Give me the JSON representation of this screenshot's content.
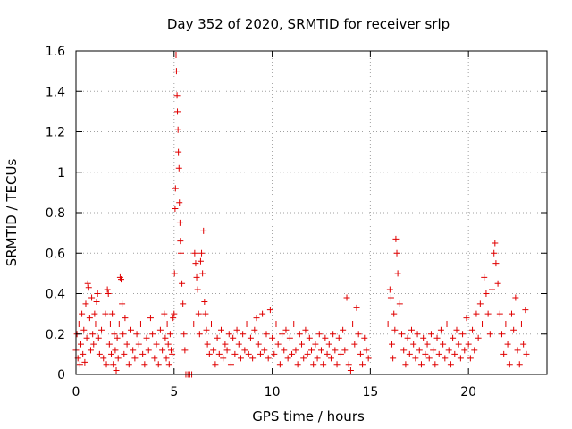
{
  "chart_data": {
    "type": "scatter",
    "title": "Day 352 of 2020, SRMTID for receiver srlp",
    "xlabel": "GPS time / hours",
    "ylabel": "SRMTID / TECUs",
    "xlim": [
      0,
      24
    ],
    "ylim": [
      0,
      1.6
    ],
    "x_ticks": [
      0,
      5,
      10,
      15,
      20
    ],
    "y_ticks": [
      0,
      0.2,
      0.4,
      0.6,
      0.8,
      1,
      1.2,
      1.4,
      1.6
    ],
    "x_tick_labels": [
      "0",
      "5",
      "10",
      "15",
      "20"
    ],
    "y_tick_labels": [
      "0",
      "0.2",
      "0.4",
      "0.6",
      "0.8",
      "1",
      "1.2",
      "1.4",
      "1.6"
    ],
    "grid": true,
    "marker": "+",
    "color": "#e00000",
    "series": [
      {
        "name": "srlp",
        "points": [
          [
            0.0,
            0.12
          ],
          [
            0.05,
            0.2
          ],
          [
            0.1,
            0.08
          ],
          [
            0.15,
            0.25
          ],
          [
            0.2,
            0.05
          ],
          [
            0.25,
            0.15
          ],
          [
            0.3,
            0.3
          ],
          [
            0.35,
            0.1
          ],
          [
            0.4,
            0.22
          ],
          [
            0.45,
            0.06
          ],
          [
            0.5,
            0.35
          ],
          [
            0.55,
            0.18
          ],
          [
            0.6,
            0.45
          ],
          [
            0.65,
            0.43
          ],
          [
            0.7,
            0.28
          ],
          [
            0.75,
            0.12
          ],
          [
            0.8,
            0.38
          ],
          [
            0.85,
            0.2
          ],
          [
            0.9,
            0.15
          ],
          [
            0.95,
            0.3
          ],
          [
            1.0,
            0.25
          ],
          [
            1.05,
            0.36
          ],
          [
            1.1,
            0.4
          ],
          [
            1.15,
            0.18
          ],
          [
            1.2,
            0.1
          ],
          [
            1.3,
            0.22
          ],
          [
            1.4,
            0.08
          ],
          [
            1.5,
            0.3
          ],
          [
            1.55,
            0.05
          ],
          [
            1.6,
            0.42
          ],
          [
            1.65,
            0.4
          ],
          [
            1.7,
            0.15
          ],
          [
            1.75,
            0.25
          ],
          [
            1.8,
            0.1
          ],
          [
            1.85,
            0.3
          ],
          [
            1.9,
            0.05
          ],
          [
            1.95,
            0.2
          ],
          [
            2.0,
            0.12
          ],
          [
            2.05,
            0.02
          ],
          [
            2.1,
            0.18
          ],
          [
            2.15,
            0.08
          ],
          [
            2.2,
            0.25
          ],
          [
            2.25,
            0.48
          ],
          [
            2.3,
            0.47
          ],
          [
            2.35,
            0.35
          ],
          [
            2.4,
            0.2
          ],
          [
            2.45,
            0.1
          ],
          [
            2.5,
            0.28
          ],
          [
            2.6,
            0.15
          ],
          [
            2.7,
            0.05
          ],
          [
            2.8,
            0.22
          ],
          [
            2.9,
            0.12
          ],
          [
            3.0,
            0.08
          ],
          [
            3.1,
            0.2
          ],
          [
            3.2,
            0.15
          ],
          [
            3.3,
            0.25
          ],
          [
            3.4,
            0.1
          ],
          [
            3.5,
            0.05
          ],
          [
            3.6,
            0.18
          ],
          [
            3.7,
            0.12
          ],
          [
            3.8,
            0.28
          ],
          [
            3.9,
            0.2
          ],
          [
            4.0,
            0.08
          ],
          [
            4.1,
            0.15
          ],
          [
            4.2,
            0.05
          ],
          [
            4.3,
            0.22
          ],
          [
            4.4,
            0.12
          ],
          [
            4.5,
            0.3
          ],
          [
            4.55,
            0.18
          ],
          [
            4.6,
            0.08
          ],
          [
            4.65,
            0.25
          ],
          [
            4.7,
            0.15
          ],
          [
            4.75,
            0.05
          ],
          [
            4.8,
            0.2
          ],
          [
            4.85,
            0.12
          ],
          [
            4.9,
            0.1
          ],
          [
            4.95,
            0.28
          ],
          [
            5.0,
            0.3
          ],
          [
            5.02,
            0.5
          ],
          [
            5.05,
            0.82
          ],
          [
            5.07,
            0.92
          ],
          [
            5.1,
            1.58
          ],
          [
            5.12,
            1.5
          ],
          [
            5.15,
            1.38
          ],
          [
            5.17,
            1.3
          ],
          [
            5.2,
            1.21
          ],
          [
            5.22,
            1.1
          ],
          [
            5.25,
            1.02
          ],
          [
            5.27,
            0.85
          ],
          [
            5.3,
            0.75
          ],
          [
            5.32,
            0.66
          ],
          [
            5.35,
            0.6
          ],
          [
            5.4,
            0.45
          ],
          [
            5.45,
            0.35
          ],
          [
            5.5,
            0.2
          ],
          [
            5.55,
            0.12
          ],
          [
            5.6,
            0.0
          ],
          [
            5.7,
            0.0
          ],
          [
            5.8,
            0.0
          ],
          [
            5.9,
            0.0
          ],
          [
            6.0,
            0.25
          ],
          [
            6.05,
            0.6
          ],
          [
            6.1,
            0.55
          ],
          [
            6.15,
            0.48
          ],
          [
            6.2,
            0.42
          ],
          [
            6.25,
            0.3
          ],
          [
            6.3,
            0.2
          ],
          [
            6.35,
            0.56
          ],
          [
            6.4,
            0.6
          ],
          [
            6.45,
            0.5
          ],
          [
            6.5,
            0.71
          ],
          [
            6.55,
            0.36
          ],
          [
            6.6,
            0.3
          ],
          [
            6.65,
            0.22
          ],
          [
            6.7,
            0.15
          ],
          [
            6.8,
            0.1
          ],
          [
            6.9,
            0.25
          ],
          [
            7.0,
            0.12
          ],
          [
            7.1,
            0.05
          ],
          [
            7.2,
            0.18
          ],
          [
            7.3,
            0.1
          ],
          [
            7.4,
            0.22
          ],
          [
            7.5,
            0.08
          ],
          [
            7.6,
            0.15
          ],
          [
            7.7,
            0.12
          ],
          [
            7.8,
            0.2
          ],
          [
            7.9,
            0.05
          ],
          [
            8.0,
            0.18
          ],
          [
            8.1,
            0.1
          ],
          [
            8.2,
            0.22
          ],
          [
            8.3,
            0.15
          ],
          [
            8.4,
            0.08
          ],
          [
            8.5,
            0.2
          ],
          [
            8.6,
            0.12
          ],
          [
            8.7,
            0.25
          ],
          [
            8.8,
            0.1
          ],
          [
            8.9,
            0.18
          ],
          [
            9.0,
            0.08
          ],
          [
            9.1,
            0.22
          ],
          [
            9.2,
            0.28
          ],
          [
            9.3,
            0.15
          ],
          [
            9.4,
            0.1
          ],
          [
            9.5,
            0.3
          ],
          [
            9.6,
            0.12
          ],
          [
            9.7,
            0.2
          ],
          [
            9.8,
            0.08
          ],
          [
            9.9,
            0.32
          ],
          [
            10.0,
            0.18
          ],
          [
            10.1,
            0.1
          ],
          [
            10.2,
            0.25
          ],
          [
            10.3,
            0.15
          ],
          [
            10.4,
            0.05
          ],
          [
            10.5,
            0.2
          ],
          [
            10.6,
            0.12
          ],
          [
            10.7,
            0.22
          ],
          [
            10.8,
            0.08
          ],
          [
            10.9,
            0.18
          ],
          [
            11.0,
            0.1
          ],
          [
            11.1,
            0.25
          ],
          [
            11.2,
            0.12
          ],
          [
            11.3,
            0.05
          ],
          [
            11.4,
            0.2
          ],
          [
            11.5,
            0.15
          ],
          [
            11.6,
            0.08
          ],
          [
            11.7,
            0.22
          ],
          [
            11.8,
            0.1
          ],
          [
            11.9,
            0.18
          ],
          [
            12.0,
            0.12
          ],
          [
            12.1,
            0.05
          ],
          [
            12.2,
            0.15
          ],
          [
            12.3,
            0.08
          ],
          [
            12.4,
            0.2
          ],
          [
            12.5,
            0.12
          ],
          [
            12.6,
            0.05
          ],
          [
            12.7,
            0.18
          ],
          [
            12.8,
            0.1
          ],
          [
            12.9,
            0.15
          ],
          [
            13.0,
            0.08
          ],
          [
            13.1,
            0.2
          ],
          [
            13.2,
            0.12
          ],
          [
            13.3,
            0.05
          ],
          [
            13.4,
            0.18
          ],
          [
            13.5,
            0.1
          ],
          [
            13.6,
            0.22
          ],
          [
            13.7,
            0.12
          ],
          [
            13.8,
            0.38
          ],
          [
            13.9,
            0.05
          ],
          [
            14.0,
            0.02
          ],
          [
            14.1,
            0.25
          ],
          [
            14.2,
            0.15
          ],
          [
            14.3,
            0.33
          ],
          [
            14.4,
            0.2
          ],
          [
            14.5,
            0.1
          ],
          [
            14.6,
            0.05
          ],
          [
            14.7,
            0.18
          ],
          [
            14.8,
            0.12
          ],
          [
            14.9,
            0.08
          ],
          [
            15.9,
            0.25
          ],
          [
            16.0,
            0.42
          ],
          [
            16.05,
            0.38
          ],
          [
            16.1,
            0.15
          ],
          [
            16.15,
            0.08
          ],
          [
            16.2,
            0.3
          ],
          [
            16.25,
            0.22
          ],
          [
            16.3,
            0.67
          ],
          [
            16.35,
            0.6
          ],
          [
            16.4,
            0.5
          ],
          [
            16.5,
            0.35
          ],
          [
            16.6,
            0.2
          ],
          [
            16.7,
            0.12
          ],
          [
            16.8,
            0.05
          ],
          [
            16.9,
            0.18
          ],
          [
            17.0,
            0.1
          ],
          [
            17.1,
            0.22
          ],
          [
            17.2,
            0.15
          ],
          [
            17.3,
            0.08
          ],
          [
            17.4,
            0.2
          ],
          [
            17.5,
            0.12
          ],
          [
            17.6,
            0.05
          ],
          [
            17.7,
            0.18
          ],
          [
            17.8,
            0.1
          ],
          [
            17.9,
            0.15
          ],
          [
            18.0,
            0.08
          ],
          [
            18.1,
            0.2
          ],
          [
            18.2,
            0.12
          ],
          [
            18.3,
            0.05
          ],
          [
            18.4,
            0.18
          ],
          [
            18.5,
            0.1
          ],
          [
            18.6,
            0.22
          ],
          [
            18.7,
            0.15
          ],
          [
            18.8,
            0.08
          ],
          [
            18.9,
            0.25
          ],
          [
            19.0,
            0.12
          ],
          [
            19.1,
            0.05
          ],
          [
            19.2,
            0.18
          ],
          [
            19.3,
            0.1
          ],
          [
            19.4,
            0.22
          ],
          [
            19.5,
            0.15
          ],
          [
            19.6,
            0.08
          ],
          [
            19.7,
            0.2
          ],
          [
            19.8,
            0.12
          ],
          [
            19.9,
            0.28
          ],
          [
            20.0,
            0.15
          ],
          [
            20.1,
            0.08
          ],
          [
            20.2,
            0.22
          ],
          [
            20.3,
            0.12
          ],
          [
            20.4,
            0.3
          ],
          [
            20.5,
            0.18
          ],
          [
            20.6,
            0.35
          ],
          [
            20.7,
            0.25
          ],
          [
            20.8,
            0.48
          ],
          [
            20.9,
            0.4
          ],
          [
            21.0,
            0.3
          ],
          [
            21.1,
            0.2
          ],
          [
            21.2,
            0.42
          ],
          [
            21.3,
            0.6
          ],
          [
            21.35,
            0.65
          ],
          [
            21.4,
            0.55
          ],
          [
            21.5,
            0.45
          ],
          [
            21.6,
            0.3
          ],
          [
            21.7,
            0.2
          ],
          [
            21.8,
            0.1
          ],
          [
            21.9,
            0.25
          ],
          [
            22.0,
            0.15
          ],
          [
            22.1,
            0.05
          ],
          [
            22.2,
            0.3
          ],
          [
            22.3,
            0.22
          ],
          [
            22.4,
            0.38
          ],
          [
            22.5,
            0.12
          ],
          [
            22.6,
            0.05
          ],
          [
            22.7,
            0.25
          ],
          [
            22.8,
            0.15
          ],
          [
            22.9,
            0.32
          ],
          [
            22.95,
            0.1
          ]
        ]
      }
    ]
  }
}
